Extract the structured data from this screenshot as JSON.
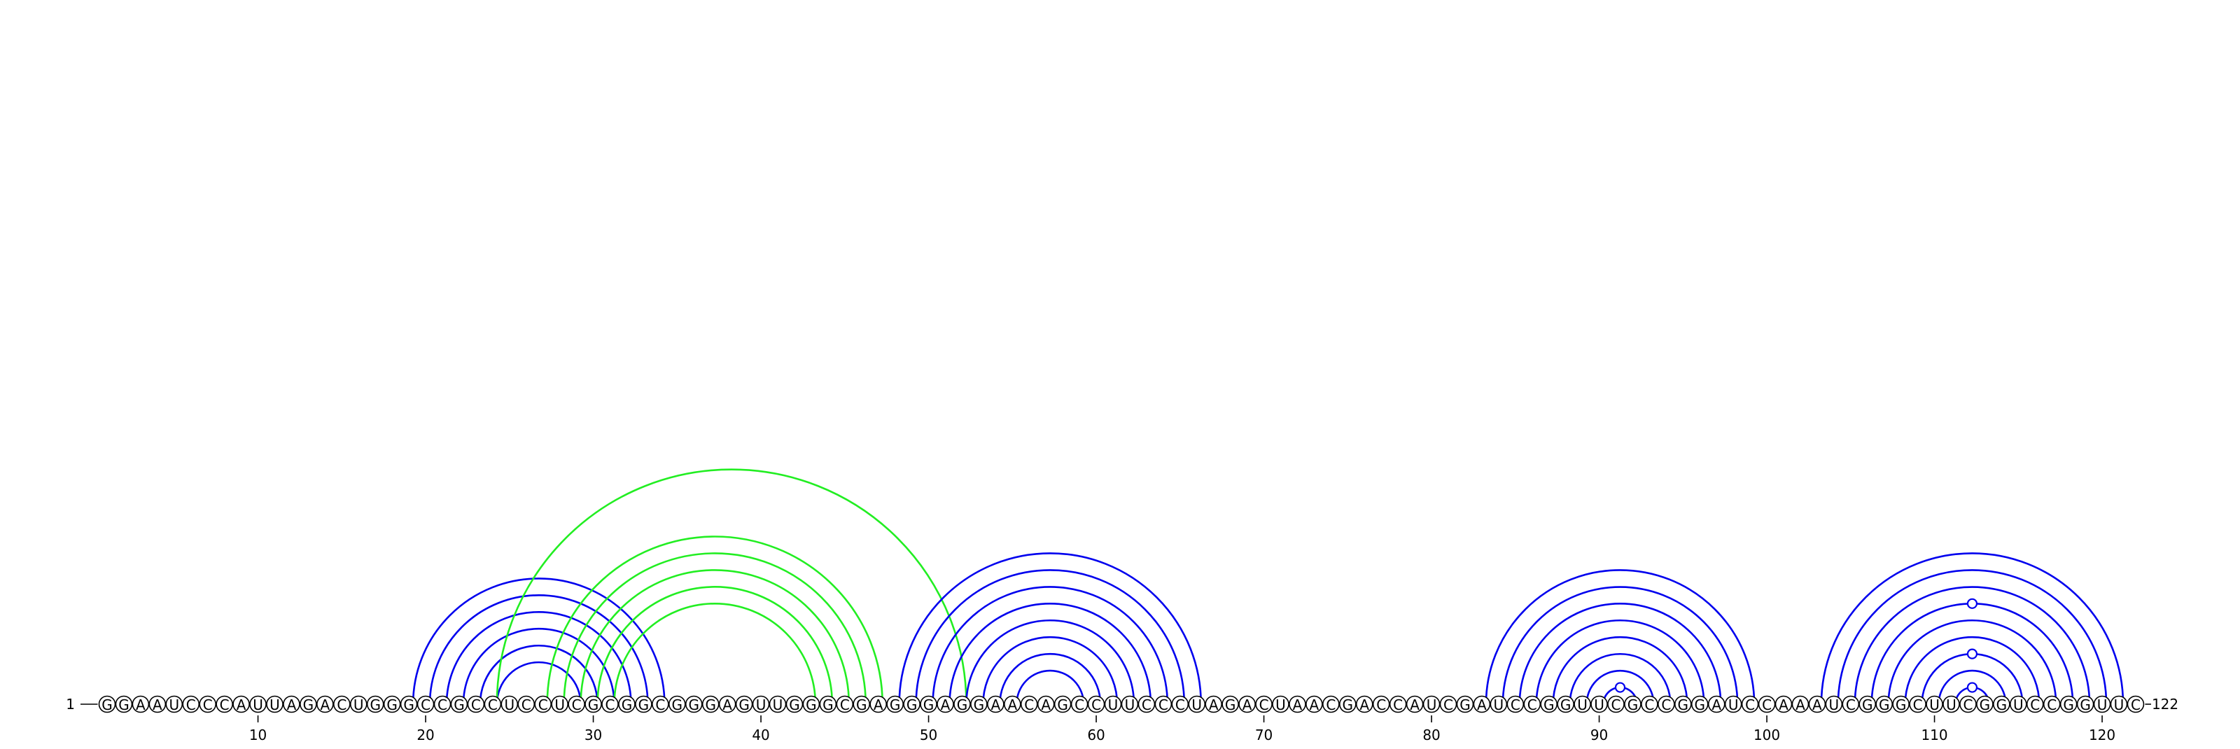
{
  "sequence": "GGAAUCCCAUUAGACUGGGCCGCCUCCUCGCGGCGGGAGUUGGGCGAGGGAGGAACAGCCUUCCCUAGACUAACGACCAUCGAUCCGGUUCGCCGGAUCCAAAUCGGGCUUCGGUCCGGUUC",
  "start_label": "1",
  "end_label": "122",
  "ticks": [
    10,
    20,
    30,
    40,
    50,
    60,
    70,
    80,
    90,
    100,
    110,
    120
  ],
  "colors": {
    "blue": "#0000ee",
    "green": "#22ee22"
  },
  "helices": [
    {
      "color": "blue",
      "pairs": [
        [
          19,
          34
        ],
        [
          20,
          33
        ],
        [
          21,
          32
        ],
        [
          22,
          31
        ],
        [
          23,
          30
        ],
        [
          24,
          29
        ]
      ]
    },
    {
      "color": "green",
      "pairs": [
        [
          24,
          52
        ],
        [
          27,
          47
        ],
        [
          28,
          46
        ],
        [
          29,
          45
        ],
        [
          30,
          44
        ],
        [
          31,
          43
        ]
      ]
    },
    {
      "color": "blue",
      "pairs": [
        [
          48,
          66
        ],
        [
          49,
          65
        ],
        [
          50,
          64
        ],
        [
          51,
          63
        ],
        [
          52,
          62
        ],
        [
          53,
          61
        ],
        [
          54,
          60
        ],
        [
          55,
          59
        ]
      ]
    },
    {
      "color": "blue",
      "pairs": [
        [
          83,
          99
        ],
        [
          84,
          98
        ],
        [
          85,
          97
        ],
        [
          86,
          96
        ],
        [
          87,
          95
        ],
        [
          88,
          94
        ],
        [
          89,
          93
        ],
        [
          90,
          92
        ]
      ]
    },
    {
      "color": "blue",
      "pairs": [
        [
          103,
          121
        ],
        [
          104,
          120
        ],
        [
          105,
          119
        ],
        [
          106,
          118
        ],
        [
          107,
          117
        ],
        [
          108,
          116
        ],
        [
          109,
          115
        ],
        [
          110,
          114
        ],
        [
          111,
          113
        ]
      ]
    }
  ],
  "bulges": [
    {
      "color": "blue",
      "pair": [
        90,
        92
      ]
    },
    {
      "color": "blue",
      "pair": [
        111,
        113
      ]
    },
    {
      "color": "blue",
      "pair": [
        109,
        115
      ]
    },
    {
      "color": "blue",
      "pair": [
        106,
        118
      ]
    }
  ]
}
